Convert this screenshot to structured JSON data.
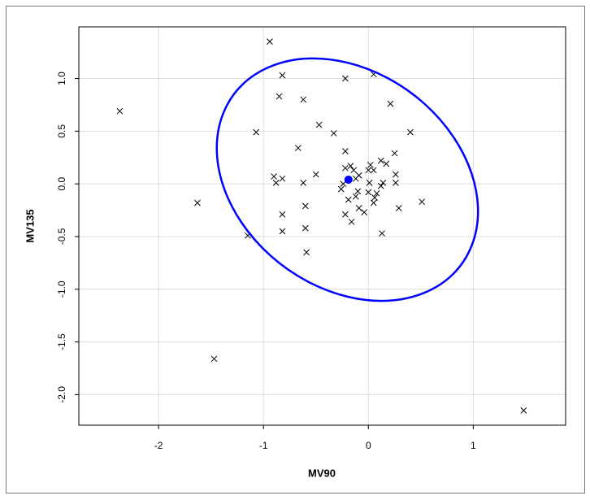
{
  "chart_data": {
    "type": "scatter",
    "x_label": "MV90",
    "y_label": "MV135",
    "xlim": [
      -2.76,
      1.88
    ],
    "ylim": [
      -2.29,
      1.49
    ],
    "xticks": [
      -2,
      -1,
      0,
      1
    ],
    "yticks": [
      {
        "value": -2,
        "label": "-2.0"
      },
      {
        "value": -1.5,
        "label": "-1.5"
      },
      {
        "value": -1,
        "label": "-1.0"
      },
      {
        "value": -0.5,
        "label": "-0.5"
      },
      {
        "value": 0,
        "label": "0.0"
      },
      {
        "value": 0.5,
        "label": "0.5"
      },
      {
        "value": 1,
        "label": "1.0"
      }
    ],
    "grid": true,
    "series": [
      {
        "marker": "x",
        "color": "#000000",
        "x": [
          -0.94,
          -2.37,
          -0.82,
          -0.22,
          0.05,
          -0.85,
          -0.62,
          0.21,
          -1.07,
          -0.47,
          -0.33,
          0.4,
          -0.67,
          -0.22,
          0.25,
          0.12,
          0.17,
          -0.22,
          -0.17,
          0.02,
          -0.14,
          0.0,
          0.05,
          -0.9,
          -0.5,
          -0.09,
          0.26,
          -0.12,
          -0.88,
          -0.82,
          -0.62,
          -0.24,
          0.01,
          0.14,
          0.26,
          -0.26,
          -0.1,
          0.0,
          0.12,
          -0.12,
          0.06,
          -0.19,
          0.05,
          0.08,
          -1.63,
          -0.6,
          0.51,
          -0.09,
          -0.04,
          0.29,
          -0.22,
          -0.16,
          -0.82,
          -0.6,
          -0.82,
          0.13,
          -1.15,
          -0.59,
          -1.47,
          1.48
        ],
        "y": [
          1.35,
          0.69,
          1.03,
          1.0,
          1.04,
          0.83,
          0.8,
          0.76,
          0.49,
          0.56,
          0.48,
          0.49,
          0.34,
          0.31,
          0.29,
          0.22,
          0.19,
          0.15,
          0.17,
          0.18,
          0.13,
          0.13,
          0.13,
          0.07,
          0.09,
          0.08,
          0.09,
          0.05,
          0.01,
          0.05,
          0.01,
          0.0,
          0.01,
          0.01,
          0.01,
          -0.05,
          -0.07,
          -0.08,
          -0.02,
          -0.12,
          -0.13,
          -0.15,
          -0.18,
          -0.09,
          -0.18,
          -0.21,
          -0.17,
          -0.23,
          -0.27,
          -0.23,
          -0.29,
          -0.36,
          -0.29,
          -0.42,
          -0.45,
          -0.47,
          -0.49,
          -0.65,
          -1.66,
          -2.15
        ]
      },
      {
        "marker": "circle",
        "color": "#0000ff",
        "x": [
          -0.19
        ],
        "y": [
          0.04
        ]
      },
      {
        "marker": "closed-curve",
        "color": "#0000ff",
        "x": [
          1.045,
          0.984,
          0.807,
          0.532,
          0.185,
          -0.2,
          -0.585,
          -0.932,
          -1.207,
          -1.384,
          -1.445,
          -1.384,
          -1.207,
          -0.932,
          -0.585,
          -0.2,
          0.185,
          0.532,
          0.807,
          0.984
        ],
        "y": [
          -0.26,
          0.098,
          0.45,
          0.762,
          1.003,
          1.15,
          1.189,
          1.114,
          0.936,
          0.668,
          0.34,
          -0.018,
          -0.37,
          -0.682,
          -0.923,
          -1.07,
          -1.109,
          -1.034,
          -0.856,
          -0.588
        ]
      }
    ]
  }
}
